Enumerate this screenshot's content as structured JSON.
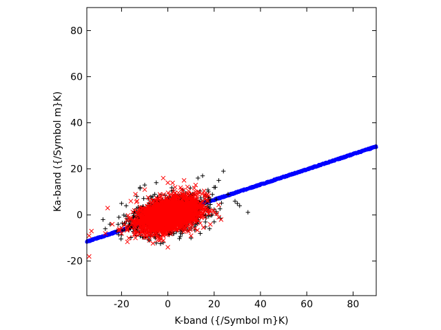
{
  "chart_data": {
    "type": "scatter",
    "title": "",
    "xlabel": "K-band ({/Symbol m}K)",
    "ylabel": "Ka-band ({/Symbol m}K)",
    "xlim": [
      -35,
      90
    ],
    "ylim": [
      -35,
      90
    ],
    "xticks": [
      -20,
      0,
      20,
      40,
      60,
      80
    ],
    "yticks": [
      -20,
      0,
      20,
      40,
      60,
      80
    ],
    "grid": false,
    "legend": "none",
    "series": [
      {
        "marker": "plus",
        "color": "#000000",
        "cloud": {
          "center": [
            0,
            0
          ],
          "sx": 7.5,
          "sy": 4.0,
          "rho": 0.38,
          "count": 1400,
          "seed": 11
        },
        "points": [
          [
            -28,
            -2
          ],
          [
            -27,
            -6
          ],
          [
            -25,
            -4
          ],
          [
            -22,
            -7
          ],
          [
            -20,
            5
          ],
          [
            -18,
            4
          ],
          [
            -12,
            12
          ],
          [
            -10,
            13
          ],
          [
            -5,
            14
          ],
          [
            13,
            16
          ],
          [
            15,
            17
          ],
          [
            20,
            12
          ],
          [
            22,
            15
          ],
          [
            24,
            19
          ],
          [
            26,
            9
          ],
          [
            29,
            6
          ],
          [
            30,
            5
          ],
          [
            31,
            4
          ],
          [
            20,
            -3
          ],
          [
            18,
            -6
          ],
          [
            14,
            -8
          ],
          [
            10,
            -10
          ],
          [
            -2,
            -12
          ],
          [
            -8,
            -11
          ]
        ]
      },
      {
        "marker": "x",
        "color": "#ff0000",
        "cloud": {
          "center": [
            0,
            0
          ],
          "sx": 6.5,
          "sy": 3.6,
          "rho": 0.38,
          "count": 2600,
          "seed": 29
        },
        "points": [
          [
            -34,
            -18
          ],
          [
            -34,
            -9
          ],
          [
            -33,
            -7
          ],
          [
            -27,
            -8
          ],
          [
            -26,
            3
          ],
          [
            -24,
            -4
          ],
          [
            -21,
            -6
          ],
          [
            -16,
            6
          ],
          [
            -14,
            9
          ],
          [
            -10,
            11
          ],
          [
            -2,
            16
          ],
          [
            0,
            14
          ],
          [
            7,
            15
          ],
          [
            12,
            13
          ],
          [
            16,
            9
          ],
          [
            20,
            1
          ],
          [
            22,
            -1
          ],
          [
            23,
            -2
          ],
          [
            10,
            -9
          ],
          [
            0,
            -14
          ],
          [
            -8,
            -11
          ],
          [
            -14,
            -10
          ],
          [
            -20,
            -8
          ]
        ]
      },
      {
        "marker": "point",
        "color": "#0000ff",
        "line": {
          "slope": 0.33,
          "intercept": 0,
          "x_range": [
            -35,
            90
          ],
          "count": 900,
          "seed": 5
        }
      }
    ]
  }
}
